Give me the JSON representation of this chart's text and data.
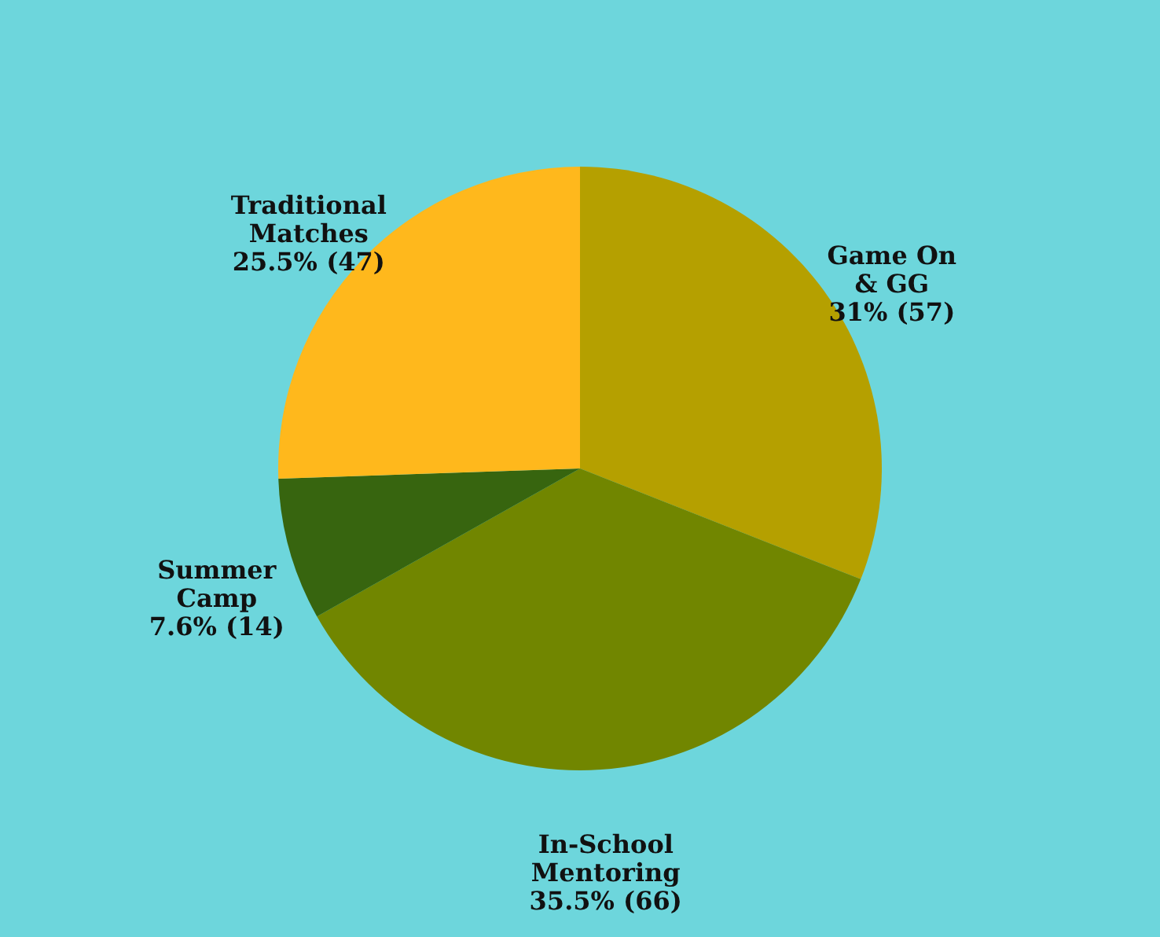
{
  "chart_data": {
    "type": "pie",
    "categories": [
      "Game On & GG",
      "In-School Mentoring",
      "Summer Camp",
      "Traditional Matches"
    ],
    "values": [
      57,
      66,
      14,
      47
    ],
    "value_labels": [
      "31% (57)",
      "35.5% (66)",
      "7.6% (14)",
      "25.5% (47)"
    ],
    "colors": [
      "#b5a000",
      "#718600",
      "#37650f",
      "#ffb81c"
    ],
    "legend": false
  }
}
